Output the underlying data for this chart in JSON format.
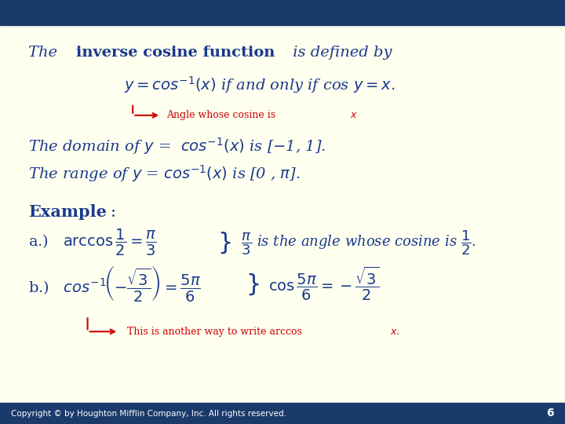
{
  "bg_color": "#FFFFF0",
  "header_bar_color": "#1a3a6b",
  "header_bar_height": 0.06,
  "footer_bar_color": "#1a3a6b",
  "footer_bar_height": 0.05,
  "text_color_dark_blue": "#1a3a8c",
  "text_color_red": "#cc0000",
  "title": "The inverse cosine function is defined by",
  "footer_text": "Copyright © by Houghton Mifflin Company, Inc. All rights reserved.",
  "footer_number": "6"
}
